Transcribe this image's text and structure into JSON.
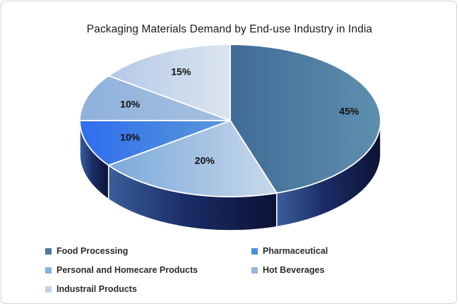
{
  "chart_data": {
    "type": "pie",
    "title": "Packaging Materials Demand by End-use Industry in India",
    "categories": [
      "Food Processing",
      "Pharmaceutical",
      "Personal and Homecare Products",
      "Hot Beverages",
      "Industrail Products"
    ],
    "values": [
      45,
      10,
      20,
      10,
      15
    ],
    "value_labels": [
      "45%",
      "10%",
      "20%",
      "10%",
      "15%"
    ],
    "colors": [
      "#4a7aa1",
      "#4a90dc",
      "#88b2dc",
      "#97b6da",
      "#c3d4e8"
    ],
    "legend_position": "bottom"
  }
}
